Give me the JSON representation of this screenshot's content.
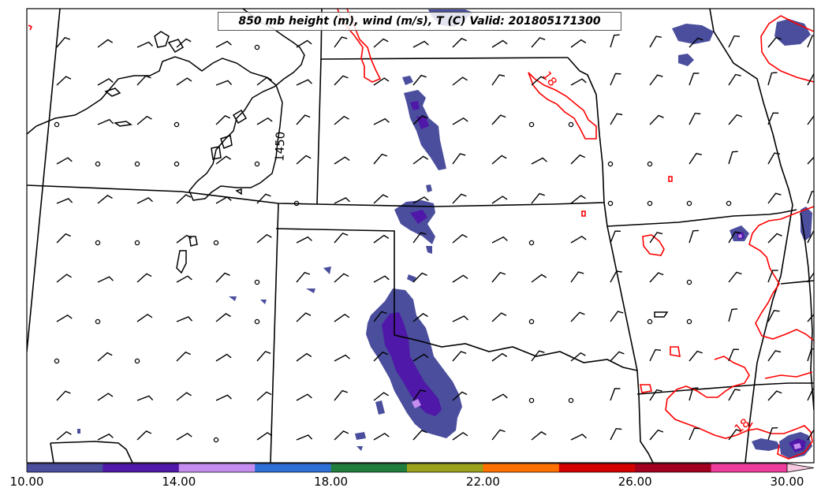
{
  "title": "850 mb height (m), wind (m/s), T (C) Valid: 201805171300",
  "contour_labels": {
    "height": "1450",
    "temp_north": "18",
    "temp_south": "18"
  },
  "colorbar": {
    "ticks": [
      "10.00",
      "14.00",
      "18.00",
      "22.00",
      "26.00",
      "30.00"
    ],
    "range": [
      10,
      32
    ],
    "colors": [
      "#4a4e9c",
      "#4f18a8",
      "#c58df0",
      "#2f6fd8",
      "#217d3c",
      "#9aa11a",
      "#ff7000",
      "#d40000",
      "#a20020",
      "#ec3c9c",
      "#f7c6df"
    ]
  },
  "colors": {
    "state_borders": "#000000",
    "height_contour": "#000000",
    "temp_contour": "#ff0000"
  }
}
